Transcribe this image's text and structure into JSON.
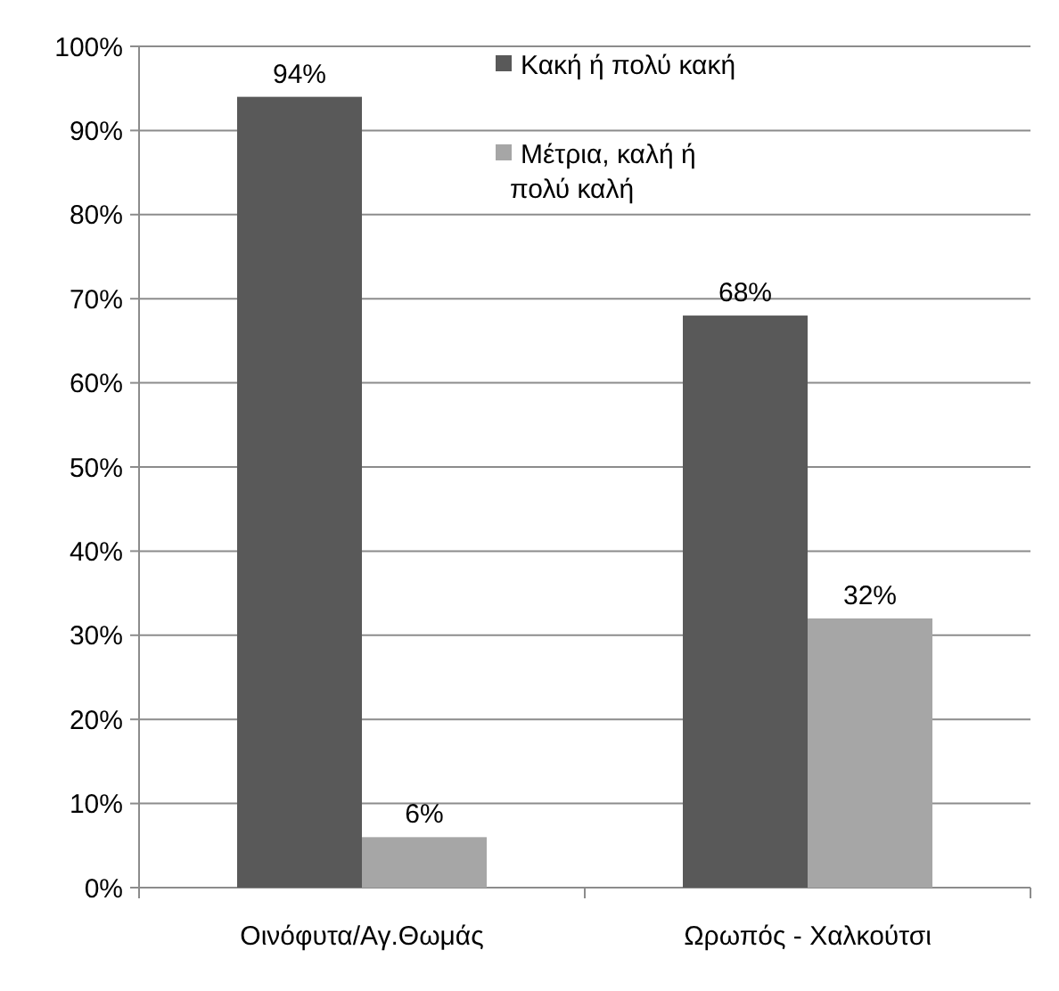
{
  "chart_data": {
    "type": "bar",
    "categories": [
      "Οινόφυτα/Αγ.Θωμάς",
      "Ωρωπός - Χαλκούτσι"
    ],
    "series": [
      {
        "name": "Κακή ή πολύ κακή",
        "color": "#595959",
        "values": [
          94,
          68
        ],
        "value_labels": [
          "94%",
          "68%"
        ]
      },
      {
        "name": "Μέτρια, καλή ή πολύ καλή",
        "color": "#a6a6a6",
        "values": [
          6,
          32
        ],
        "value_labels": [
          "6%",
          "32%"
        ]
      }
    ],
    "ylim": [
      0,
      100
    ],
    "yticks": [
      {
        "value": 0,
        "label": "0%"
      },
      {
        "value": 10,
        "label": "10%"
      },
      {
        "value": 20,
        "label": "20%"
      },
      {
        "value": 30,
        "label": "30%"
      },
      {
        "value": 40,
        "label": "40%"
      },
      {
        "value": 50,
        "label": "50%"
      },
      {
        "value": 60,
        "label": "60%"
      },
      {
        "value": 70,
        "label": "70%"
      },
      {
        "value": 80,
        "label": "80%"
      },
      {
        "value": 90,
        "label": "90%"
      },
      {
        "value": 100,
        "label": "100%"
      }
    ],
    "grid": "y",
    "legend": "top right"
  }
}
